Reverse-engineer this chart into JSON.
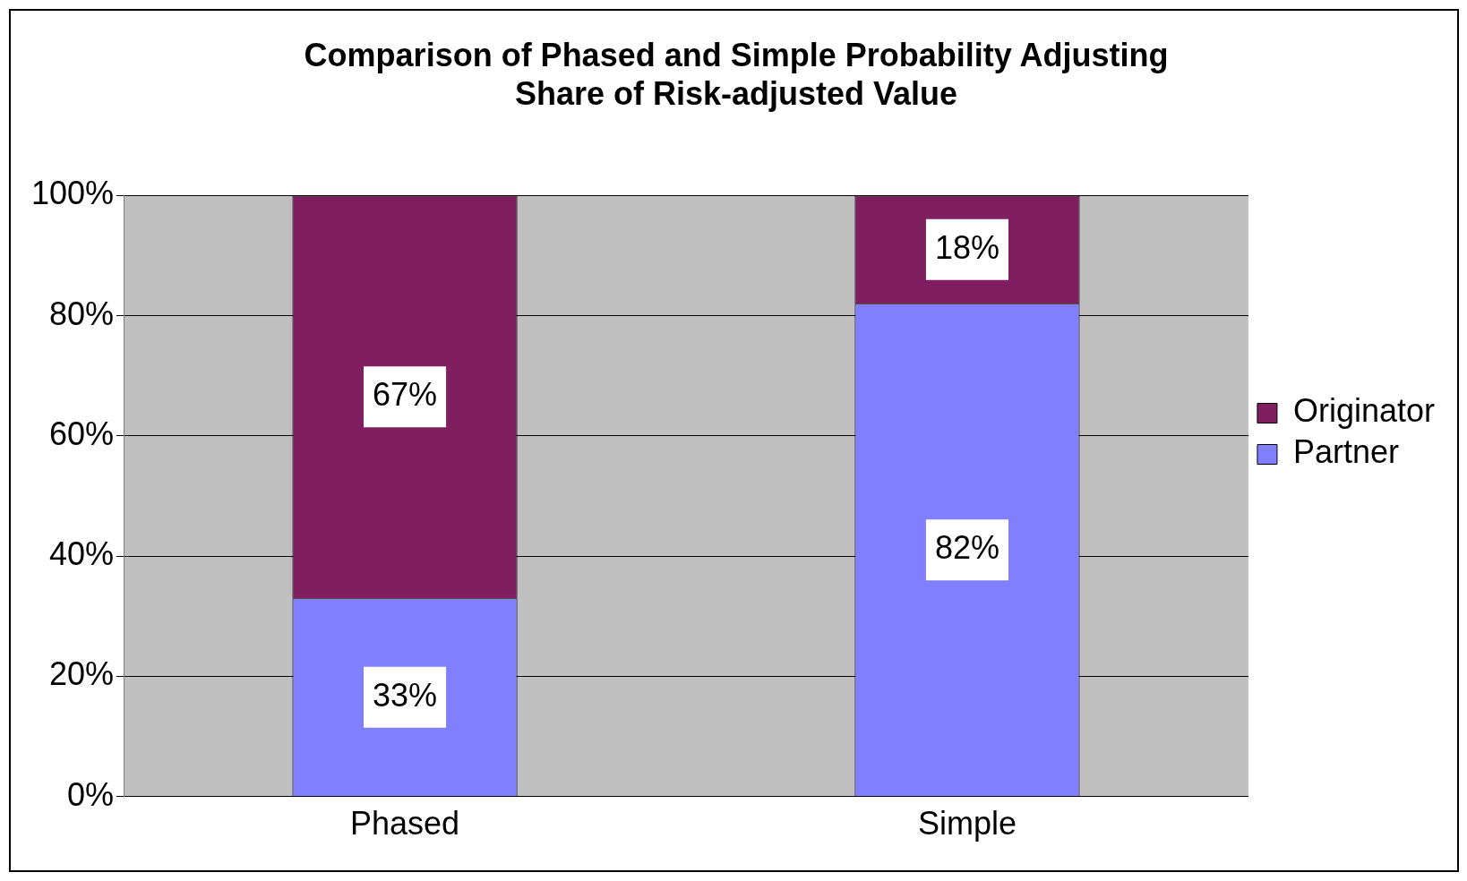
{
  "chart_data": {
    "type": "bar",
    "title": "Comparison of Phased and Simple Probability Adjusting\nShare of Risk-adjusted Value",
    "categories": [
      "Phased",
      "Simple"
    ],
    "stacked": true,
    "series": [
      {
        "name": "Partner",
        "color": "#8080ff",
        "values": [
          33,
          82
        ],
        "value_labels": [
          "33%",
          "82%"
        ]
      },
      {
        "name": "Originator",
        "color": "#7f1f5f",
        "values": [
          67,
          18
        ],
        "value_labels": [
          "67%",
          "18%"
        ]
      }
    ],
    "ylim": [
      0,
      100
    ],
    "yticks": [
      {
        "value": 0,
        "label": "0%"
      },
      {
        "value": 20,
        "label": "20%"
      },
      {
        "value": 40,
        "label": "40%"
      },
      {
        "value": 60,
        "label": "60%"
      },
      {
        "value": 80,
        "label": "80%"
      },
      {
        "value": 100,
        "label": "100%"
      }
    ],
    "grid": "y",
    "legend": "right"
  }
}
